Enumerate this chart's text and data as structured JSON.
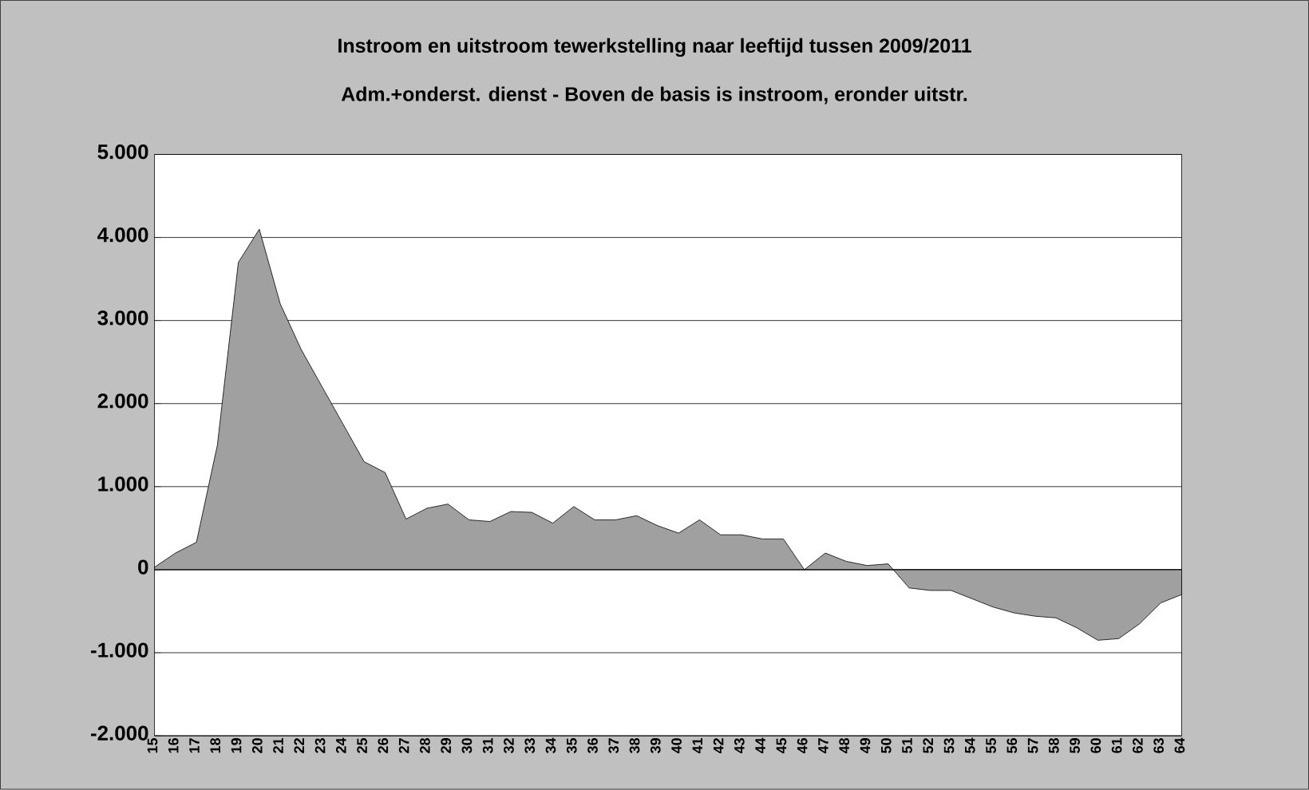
{
  "chart_data": {
    "type": "area",
    "title": "Instroom en uitstroom tewerkstelling naar leeftijd tussen 2009/2011",
    "subtitle": "Adm.+onderst. dienst - Boven de basis is instroom, eronder uitstr.",
    "categories": [
      "15",
      "16",
      "17",
      "18",
      "19",
      "20",
      "21",
      "22",
      "23",
      "24",
      "25",
      "26",
      "27",
      "28",
      "29",
      "30",
      "31",
      "32",
      "33",
      "34",
      "35",
      "36",
      "37",
      "38",
      "39",
      "40",
      "41",
      "42",
      "43",
      "44",
      "45",
      "46",
      "47",
      "48",
      "49",
      "50",
      "51",
      "52",
      "53",
      "54",
      "55",
      "56",
      "57",
      "58",
      "59",
      "60",
      "61",
      "62",
      "63",
      "64"
    ],
    "values": [
      30,
      200,
      330,
      1500,
      3700,
      4100,
      3200,
      2650,
      2200,
      1750,
      1300,
      1170,
      610,
      740,
      790,
      600,
      580,
      700,
      690,
      560,
      760,
      600,
      600,
      650,
      530,
      440,
      600,
      420,
      420,
      370,
      370,
      0,
      200,
      100,
      50,
      70,
      -220,
      -250,
      -250,
      -350,
      -450,
      -520,
      -560,
      -580,
      -700,
      -850,
      -830,
      -650,
      -400,
      -300
    ],
    "color": "#a0a0a0",
    "ylim": [
      -2000,
      5000
    ],
    "yticks": [
      {
        "value": -2000,
        "label": "-2.000"
      },
      {
        "value": -1000,
        "label": "-1.000"
      },
      0,
      {
        "value": 1000,
        "label": "1.000"
      },
      {
        "value": 2000,
        "label": "2.000"
      },
      {
        "value": 3000,
        "label": "3.000"
      },
      {
        "value": 4000,
        "label": "4.000"
      },
      {
        "value": 5000,
        "label": "5.000"
      }
    ],
    "grid": "y"
  }
}
